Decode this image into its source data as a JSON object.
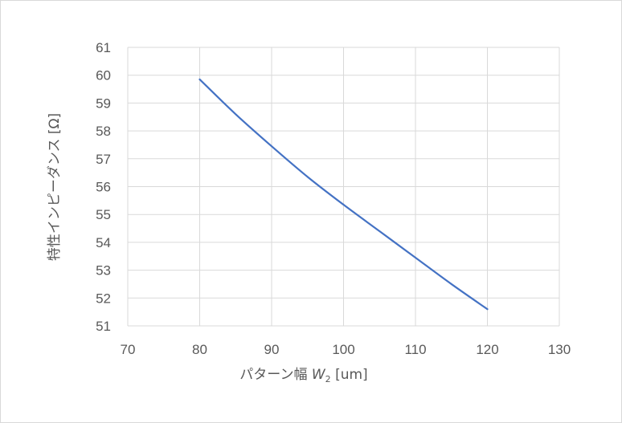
{
  "chart_data": {
    "type": "line",
    "title": "",
    "xlabel_prefix": "パターン幅 ",
    "xlabel_var": "W",
    "xlabel_sub": "2",
    "xlabel_suffix": " [um]",
    "ylabel": "特性インピーダンス [Ω]",
    "xlim": [
      70,
      130
    ],
    "ylim": [
      51,
      61
    ],
    "xticks": [
      70,
      80,
      90,
      100,
      110,
      120,
      130
    ],
    "yticks": [
      51,
      52,
      53,
      54,
      55,
      56,
      57,
      58,
      59,
      60,
      61
    ],
    "grid": true,
    "legend": "none",
    "series": [
      {
        "color": "#4472c4",
        "x": [
          80,
          85,
          90,
          95,
          100,
          105,
          110,
          115,
          120
        ],
        "y": [
          59.85,
          58.6,
          57.45,
          56.35,
          55.35,
          54.4,
          53.45,
          52.5,
          51.6
        ]
      }
    ]
  }
}
